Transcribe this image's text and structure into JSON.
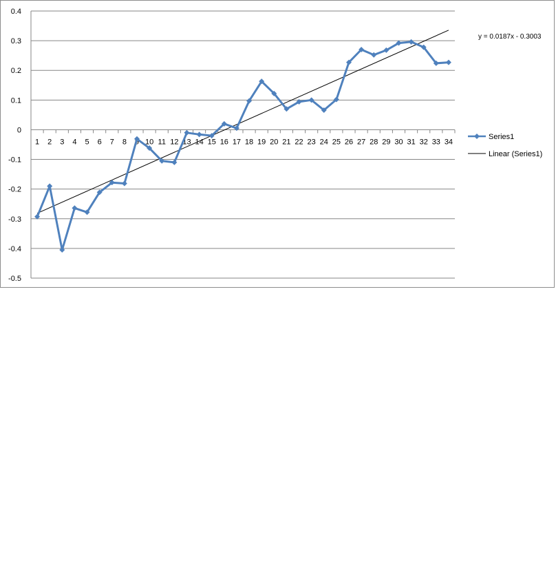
{
  "chart_data": {
    "type": "line",
    "title": "",
    "xlabel": "",
    "ylabel": "",
    "x": [
      1,
      2,
      3,
      4,
      5,
      6,
      7,
      8,
      9,
      10,
      11,
      12,
      13,
      14,
      15,
      16,
      17,
      18,
      19,
      20,
      21,
      22,
      23,
      24,
      25,
      26,
      27,
      28,
      29,
      30,
      31,
      32,
      33,
      34
    ],
    "ylim": [
      -0.5,
      0.4
    ],
    "yticks": [
      "0.4",
      "0.3",
      "0.2",
      "0.1",
      "0",
      "-0.1",
      "-0.2",
      "-0.3",
      "-0.4",
      "-0.5"
    ],
    "xticks": [
      "1",
      "2",
      "3",
      "4",
      "5",
      "6",
      "7",
      "8",
      "9",
      "10",
      "11",
      "12",
      "13",
      "14",
      "15",
      "16",
      "17",
      "18",
      "19",
      "20",
      "21",
      "22",
      "23",
      "24",
      "25",
      "26",
      "27",
      "28",
      "29",
      "30",
      "31",
      "32",
      "33",
      "34"
    ],
    "grid": true,
    "legend_position": "right",
    "series": [
      {
        "name": "Series1",
        "color": "#4f81bd",
        "marker": "diamond",
        "values": [
          -0.293,
          -0.19,
          -0.405,
          -0.264,
          -0.278,
          -0.211,
          -0.178,
          -0.181,
          -0.031,
          -0.062,
          -0.105,
          -0.11,
          -0.01,
          -0.016,
          -0.02,
          0.02,
          0.005,
          0.097,
          0.163,
          0.122,
          0.07,
          0.094,
          0.1,
          0.066,
          0.102,
          0.227,
          0.27,
          0.252,
          0.268,
          0.292,
          0.296,
          0.278,
          0.224,
          0.227
        ]
      }
    ],
    "trendline": {
      "name": "Linear (Series1)",
      "color": "#000000",
      "slope": 0.0187,
      "intercept": -0.3003,
      "equation": "y = 0.0187x - 0.3003"
    }
  }
}
